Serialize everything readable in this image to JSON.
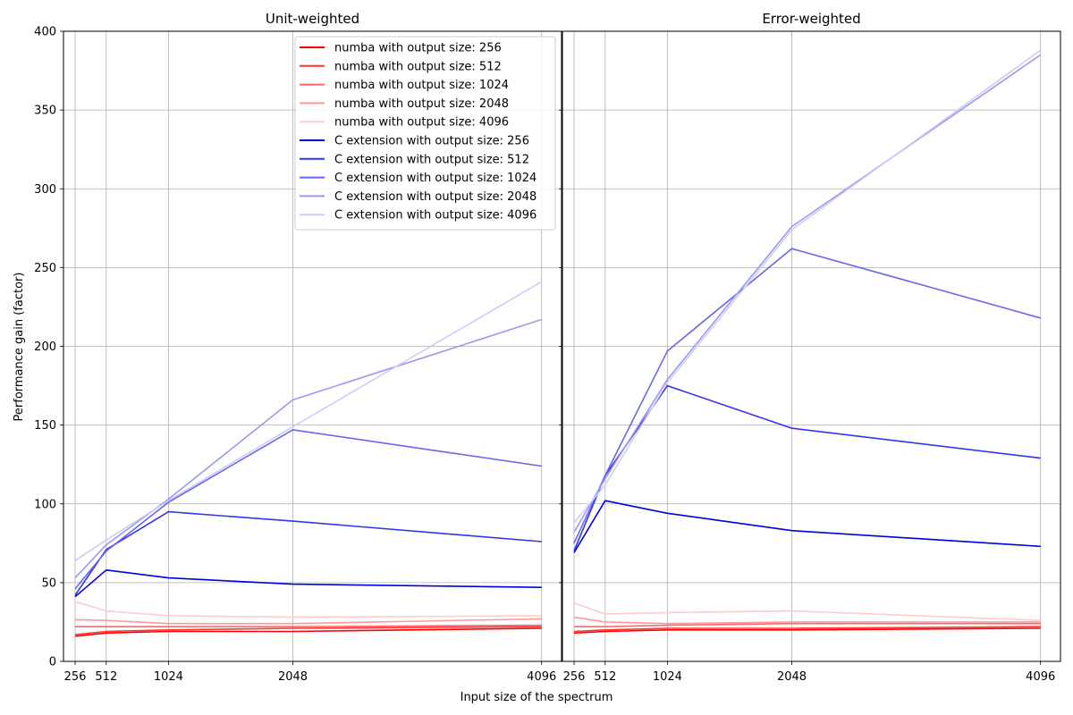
{
  "chart_data": {
    "type": "line",
    "ylabel": "Performance gain (factor)",
    "xlabel": "Input size of the spectrum",
    "x": [
      256,
      512,
      1024,
      2048,
      4096
    ],
    "xticks": [
      "256",
      "512",
      "1024",
      "2048",
      "4096"
    ],
    "xlim": [
      160,
      4260
    ],
    "ylim": [
      0,
      400
    ],
    "yticks": [
      "0",
      "50",
      "100",
      "150",
      "200",
      "250",
      "300",
      "350",
      "400"
    ],
    "grid": true,
    "legend_placement": "top-right of left panel",
    "panels": [
      {
        "title": "Unit-weighted",
        "series": [
          {
            "name": "numba with output size: 256",
            "color": "#ff0000",
            "values": [
              16,
              18,
              19,
              19,
              21
            ]
          },
          {
            "name": "numba with output size: 512",
            "color": "#ff3333",
            "values": [
              17,
              19,
              20,
              21,
              22
            ]
          },
          {
            "name": "numba with output size: 1024",
            "color": "#ff6666",
            "values": [
              22,
              22,
              22,
              22,
              23
            ]
          },
          {
            "name": "numba with output size: 2048",
            "color": "#ff9999",
            "values": [
              26.5,
              26,
              24,
              24,
              27
            ]
          },
          {
            "name": "numba with output size: 4096",
            "color": "#ffcccc",
            "values": [
              38,
              32,
              29,
              28,
              29
            ]
          },
          {
            "name": "C extension with output size: 256",
            "color": "#0000dd",
            "values": [
              41,
              58,
              53,
              49,
              47
            ]
          },
          {
            "name": "C extension with output size: 512",
            "color": "#3333ee",
            "values": [
              42,
              71,
              95,
              89,
              76
            ]
          },
          {
            "name": "C extension with output size: 1024",
            "color": "#6666ee",
            "values": [
              46,
              70,
              101,
              147,
              124
            ]
          },
          {
            "name": "C extension with output size: 2048",
            "color": "#9999ee",
            "values": [
              53,
              74,
              103,
              166,
              217
            ]
          },
          {
            "name": "C extension with output size: 4096",
            "color": "#ccccf8",
            "values": [
              64,
              77,
              102,
              149,
              241
            ]
          }
        ]
      },
      {
        "title": "Error-weighted",
        "series": [
          {
            "name": "numba with output size: 256",
            "color": "#ff0000",
            "values": [
              18,
              19,
              20,
              20,
              21
            ]
          },
          {
            "name": "numba with output size: 512",
            "color": "#ff3333",
            "values": [
              19,
              20,
              21,
              21,
              22
            ]
          },
          {
            "name": "numba with output size: 1024",
            "color": "#ff6666",
            "values": [
              22,
              22,
              23,
              24,
              24
            ]
          },
          {
            "name": "numba with output size: 2048",
            "color": "#ff9999",
            "values": [
              28,
              25,
              24,
              25,
              25
            ]
          },
          {
            "name": "numba with output size: 4096",
            "color": "#ffcccc",
            "values": [
              37,
              30,
              31,
              32,
              26
            ]
          },
          {
            "name": "C extension with output size: 256",
            "color": "#0000dd",
            "values": [
              69,
              102,
              94,
              83,
              73
            ]
          },
          {
            "name": "C extension with output size: 512",
            "color": "#3333ee",
            "values": [
              70,
              118,
              175,
              148,
              129
            ]
          },
          {
            "name": "C extension with output size: 1024",
            "color": "#6666ee",
            "values": [
              75,
              118,
              197,
              262,
              218
            ]
          },
          {
            "name": "C extension with output size: 2048",
            "color": "#9999ee",
            "values": [
              82,
              116,
              179,
              276,
              385
            ]
          },
          {
            "name": "C extension with output size: 4096",
            "color": "#ccccf8",
            "values": [
              88,
              112,
              177,
              274,
              388
            ]
          }
        ]
      }
    ]
  }
}
